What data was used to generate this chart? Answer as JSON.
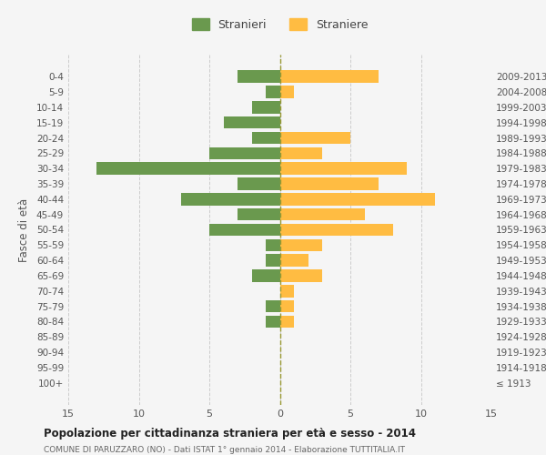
{
  "age_groups": [
    "100+",
    "95-99",
    "90-94",
    "85-89",
    "80-84",
    "75-79",
    "70-74",
    "65-69",
    "60-64",
    "55-59",
    "50-54",
    "45-49",
    "40-44",
    "35-39",
    "30-34",
    "25-29",
    "20-24",
    "15-19",
    "10-14",
    "5-9",
    "0-4"
  ],
  "birth_years": [
    "≤ 1913",
    "1914-1918",
    "1919-1923",
    "1924-1928",
    "1929-1933",
    "1934-1938",
    "1939-1943",
    "1944-1948",
    "1949-1953",
    "1954-1958",
    "1959-1963",
    "1964-1968",
    "1969-1973",
    "1974-1978",
    "1979-1983",
    "1984-1988",
    "1989-1993",
    "1994-1998",
    "1999-2003",
    "2004-2008",
    "2009-2013"
  ],
  "males": [
    0,
    0,
    0,
    0,
    1,
    1,
    0,
    2,
    1,
    1,
    5,
    3,
    7,
    3,
    13,
    5,
    2,
    4,
    2,
    1,
    3
  ],
  "females": [
    0,
    0,
    0,
    0,
    1,
    1,
    1,
    3,
    2,
    3,
    8,
    6,
    11,
    7,
    9,
    3,
    5,
    0,
    0,
    1,
    7
  ],
  "male_color": "#6a994e",
  "female_color": "#ffbc42",
  "title": "Popolazione per cittadinanza straniera per età e sesso - 2014",
  "subtitle": "COMUNE DI PARUZZARO (NO) - Dati ISTAT 1° gennaio 2014 - Elaborazione TUTTITALIA.IT",
  "ylabel_left": "Fasce di età",
  "legend_stranieri": "Stranieri",
  "legend_straniere": "Straniere",
  "xlim": 15,
  "background_color": "#f5f5f5",
  "grid_color": "#cccccc",
  "bar_height": 0.8
}
